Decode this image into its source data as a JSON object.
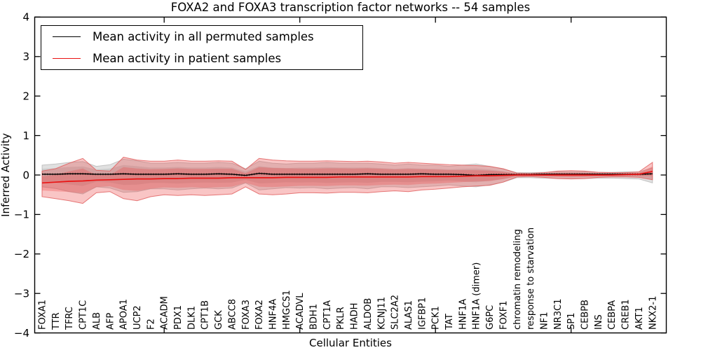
{
  "chart_data": {
    "type": "line",
    "title": "FOXA2 and FOXA3 transcription factor networks -- 54 samples",
    "xlabel": "Cellular Entities",
    "ylabel": "Inferred Activity",
    "ylim": [
      -4,
      4
    ],
    "yticks": [
      4,
      3,
      2,
      1,
      0,
      -1,
      -2,
      -3,
      -4
    ],
    "grid": false,
    "legend_position": "upper left",
    "categories": [
      "FOXA1",
      "TTR",
      "TFRC",
      "CPT1C",
      "ALB",
      "AFP",
      "APOA1",
      "UCP2",
      "F2",
      "ACADM",
      "PDX1",
      "DLK1",
      "CPT1B",
      "GCK",
      "ABCC8",
      "FOXA3",
      "FOXA2",
      "HNF4A",
      "HMGCS1",
      "ACADVL",
      "BDH1",
      "CPT1A",
      "PKLR",
      "HADH",
      "ALDOB",
      "KCNJ11",
      "SLC2A2",
      "ALAS1",
      "IGFBP1",
      "PCK1",
      "TAT",
      "HNF1A",
      "HNF1A (dimer)",
      "G6PC",
      "FOXF1",
      "chromatin remodeling",
      "response to starvation",
      "NF1",
      "NR3C1",
      "SP1",
      "CEBPB",
      "INS",
      "CEBPA",
      "CREB1",
      "AKT1",
      "NKX2-1"
    ],
    "series": [
      {
        "name": "Mean activity in all permuted samples",
        "color": "#000000",
        "values": [
          0.02,
          0.02,
          0.03,
          0.03,
          0.02,
          0.02,
          0.03,
          0.02,
          0.02,
          0.02,
          0.03,
          0.02,
          0.02,
          0.03,
          0.02,
          -0.01,
          0.04,
          0.02,
          0.02,
          0.02,
          0.02,
          0.02,
          0.02,
          0.02,
          0.03,
          0.02,
          0.02,
          0.02,
          0.03,
          0.02,
          0.02,
          0.01,
          -0.01,
          0.01,
          0.01,
          0.01,
          0.01,
          0.02,
          0.02,
          0.02,
          0.02,
          0.02,
          0.02,
          0.02,
          0.02,
          0.03
        ]
      },
      {
        "name": "Mean activity in patient samples",
        "color": "#ea1313",
        "values": [
          -0.2,
          -0.18,
          -0.16,
          -0.15,
          -0.13,
          -0.12,
          -0.11,
          -0.1,
          -0.1,
          -0.09,
          -0.09,
          -0.08,
          -0.08,
          -0.08,
          -0.07,
          -0.07,
          -0.07,
          -0.07,
          -0.06,
          -0.06,
          -0.06,
          -0.06,
          -0.05,
          -0.05,
          -0.05,
          -0.05,
          -0.05,
          -0.05,
          -0.04,
          -0.04,
          -0.04,
          -0.03,
          -0.02,
          -0.02,
          -0.01,
          0.0,
          0.0,
          0.0,
          0.0,
          0.0,
          0.0,
          0.0,
          0.0,
          0.01,
          0.02,
          0.09
        ]
      }
    ],
    "bands": [
      {
        "name": "permuted samples std band",
        "color_key": "permuted_fill",
        "upper": [
          0.25,
          0.28,
          0.32,
          0.34,
          0.22,
          0.26,
          0.4,
          0.36,
          0.3,
          0.3,
          0.32,
          0.3,
          0.3,
          0.32,
          0.3,
          0.16,
          0.35,
          0.3,
          0.28,
          0.3,
          0.3,
          0.32,
          0.3,
          0.3,
          0.3,
          0.28,
          0.25,
          0.28,
          0.25,
          0.25,
          0.22,
          0.25,
          0.28,
          0.22,
          0.15,
          0.06,
          0.06,
          0.07,
          0.08,
          0.08,
          0.08,
          0.07,
          0.07,
          0.08,
          0.08,
          0.18
        ],
        "lower": [
          -0.3,
          -0.34,
          -0.42,
          -0.48,
          -0.3,
          -0.33,
          -0.44,
          -0.42,
          -0.35,
          -0.35,
          -0.38,
          -0.35,
          -0.33,
          -0.35,
          -0.33,
          -0.2,
          -0.38,
          -0.35,
          -0.32,
          -0.33,
          -0.32,
          -0.35,
          -0.33,
          -0.32,
          -0.35,
          -0.3,
          -0.3,
          -0.32,
          -0.3,
          -0.28,
          -0.25,
          -0.28,
          -0.3,
          -0.25,
          -0.18,
          -0.07,
          -0.07,
          -0.08,
          -0.09,
          -0.09,
          -0.09,
          -0.08,
          -0.08,
          -0.09,
          -0.1,
          -0.2
        ]
      },
      {
        "name": "patient samples std band",
        "color_key": "patient_fill",
        "upper": [
          0.1,
          0.16,
          0.3,
          0.42,
          0.12,
          0.1,
          0.45,
          0.38,
          0.35,
          0.35,
          0.38,
          0.35,
          0.35,
          0.36,
          0.35,
          0.14,
          0.42,
          0.38,
          0.36,
          0.35,
          0.35,
          0.36,
          0.35,
          0.34,
          0.35,
          0.33,
          0.3,
          0.32,
          0.3,
          0.28,
          0.26,
          0.25,
          0.24,
          0.22,
          0.16,
          0.05,
          0.04,
          0.06,
          0.1,
          0.11,
          0.1,
          0.07,
          0.06,
          0.06,
          0.08,
          0.32
        ],
        "lower": [
          -0.55,
          -0.6,
          -0.65,
          -0.72,
          -0.45,
          -0.42,
          -0.6,
          -0.65,
          -0.55,
          -0.5,
          -0.52,
          -0.5,
          -0.52,
          -0.5,
          -0.48,
          -0.3,
          -0.48,
          -0.5,
          -0.48,
          -0.45,
          -0.45,
          -0.46,
          -0.44,
          -0.44,
          -0.45,
          -0.42,
          -0.4,
          -0.42,
          -0.38,
          -0.36,
          -0.33,
          -0.3,
          -0.28,
          -0.26,
          -0.18,
          -0.05,
          -0.04,
          -0.06,
          -0.09,
          -0.1,
          -0.09,
          -0.06,
          -0.05,
          -0.05,
          -0.06,
          -0.12
        ]
      }
    ]
  },
  "colors": {
    "permuted_fill": "rgba(125,125,125,0.24)",
    "permuted_fill_inner": "rgba(125,125,125,0.20)",
    "permuted_edge": "rgba(160,160,160,0.55)",
    "patient_fill": "rgba(236,62,62,0.30)",
    "patient_fill_inner": "rgba(236,62,62,0.28)",
    "patient_edge": "rgba(226,98,98,0.85)",
    "black_line": "#000000",
    "red_line": "#ea1313",
    "frame": "#000000"
  }
}
